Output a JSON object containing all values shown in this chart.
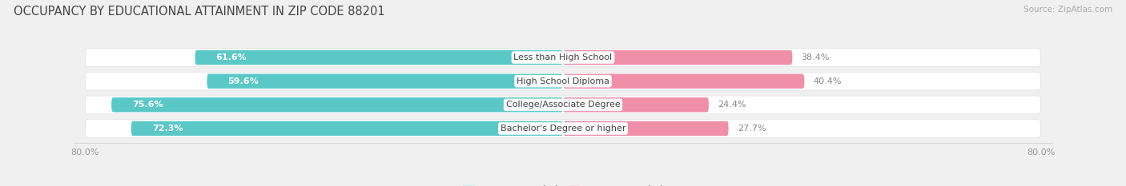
{
  "title": "OCCUPANCY BY EDUCATIONAL ATTAINMENT IN ZIP CODE 88201",
  "source": "Source: ZipAtlas.com",
  "categories": [
    "Less than High School",
    "High School Diploma",
    "College/Associate Degree",
    "Bachelor's Degree or higher"
  ],
  "owner_pct": [
    61.6,
    59.6,
    75.6,
    72.3
  ],
  "renter_pct": [
    38.4,
    40.4,
    24.4,
    27.7
  ],
  "owner_color": "#5bc8c8",
  "renter_color": "#f090a8",
  "bg_color": "#f0f0f0",
  "row_bg_even": "#ffffff",
  "row_bg_odd": "#f8f8f8",
  "label_color_owner": "#ffffff",
  "label_color_renter": "#888888",
  "cat_label_color": "#444444",
  "title_color": "#444444",
  "source_color": "#aaaaaa",
  "axis_tick_color": "#999999",
  "axis_left_pct": "80.0%",
  "axis_right_pct": "80.0%",
  "title_fontsize": 10.5,
  "source_fontsize": 7.5,
  "bar_label_fontsize": 8,
  "cat_label_fontsize": 8,
  "legend_fontsize": 8.5,
  "axis_label_fontsize": 8
}
